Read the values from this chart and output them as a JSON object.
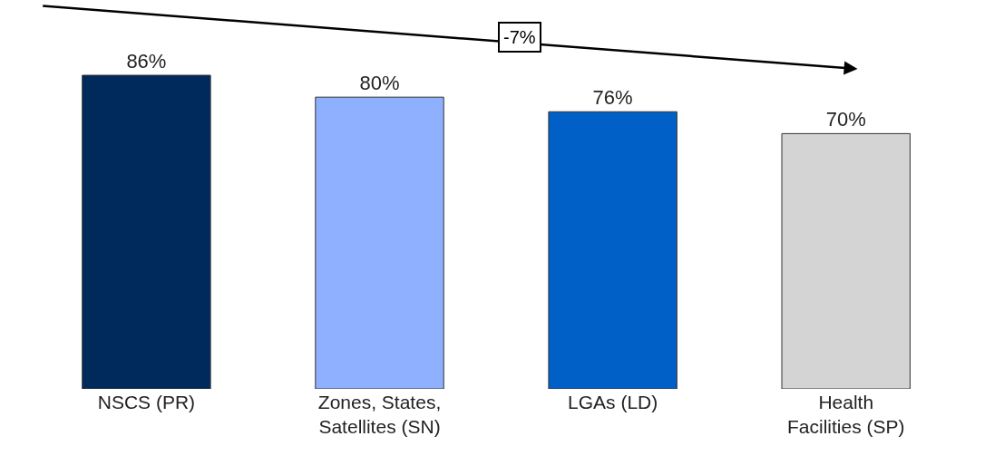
{
  "chart_data": {
    "type": "bar",
    "categories": [
      "NSCS (PR)",
      "Zones, States,\nSatellites (SN)",
      "LGAs (LD)",
      "Health\nFacilities (SP)"
    ],
    "values": [
      86,
      80,
      76,
      70
    ],
    "colors": [
      "#002a5c",
      "#8fb0ff",
      "#0060c8",
      "#d4d4d4"
    ],
    "data_labels": true,
    "value_labels": [
      "86%",
      "80%",
      "76%",
      "70%"
    ],
    "annotations": [
      "-7%"
    ]
  }
}
